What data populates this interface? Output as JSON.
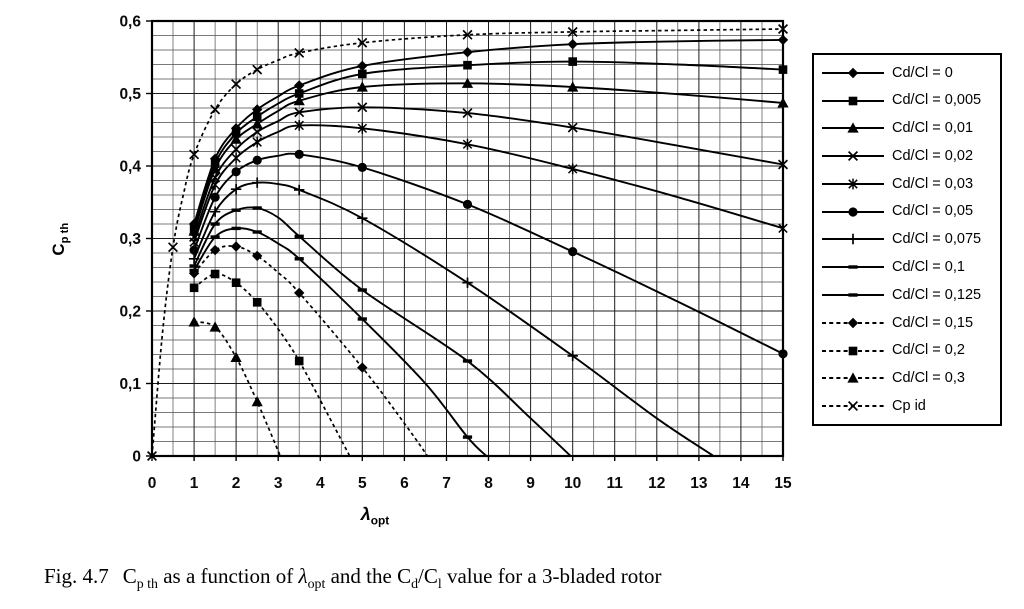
{
  "figure": {
    "caption_segments": [
      {
        "t": "Fig. 4.7",
        "gap": true
      },
      {
        "t": "C"
      },
      {
        "sub": "p th"
      },
      {
        "t": " as a function of "
      },
      {
        "t": "λ",
        "italic": true
      },
      {
        "sub": "opt"
      },
      {
        "t": " and the C"
      },
      {
        "sub": "d"
      },
      {
        "t": "/C"
      },
      {
        "sub": "l"
      },
      {
        "t": " value for a 3-bladed rotor"
      }
    ]
  },
  "chart_data": {
    "type": "line",
    "title": "",
    "xlabel": "λ_opt",
    "ylabel": "C_p th",
    "xlabel_segments": [
      {
        "t": "λ",
        "italic": true
      },
      {
        "sub": "opt"
      }
    ],
    "ylabel_segments": [
      {
        "t": "C"
      },
      {
        "sub": "p th"
      }
    ],
    "xlim": [
      0,
      15
    ],
    "ylim": [
      0,
      0.6
    ],
    "x_major": 1,
    "x_minor": 0.5,
    "y_major": 0.1,
    "y_minor": 0.02,
    "grid": true,
    "legend_position": "right",
    "x_ticks": [
      "0",
      "1",
      "2",
      "3",
      "4",
      "5",
      "6",
      "7",
      "8",
      "9",
      "10",
      "11",
      "12",
      "13",
      "14",
      "15"
    ],
    "y_ticks": [
      "0",
      "0,1",
      "0,2",
      "0,3",
      "0,4",
      "0,5",
      "0,6"
    ],
    "series": [
      {
        "name": "Cd/Cl = 0",
        "marker": "diamond",
        "line": "solid",
        "points": [
          [
            1,
            0.32
          ],
          [
            1.5,
            0.41
          ],
          [
            2,
            0.452
          ],
          [
            2.5,
            0.478
          ],
          [
            3,
            0.496
          ],
          [
            3.5,
            0.511
          ],
          [
            5,
            0.538
          ],
          [
            7.5,
            0.557
          ],
          [
            10,
            0.568
          ],
          [
            12.5,
            0.572
          ],
          [
            15,
            0.574
          ]
        ],
        "markers_at": [
          1,
          1.5,
          2,
          2.5,
          3.5,
          5,
          7.5,
          10,
          15
        ]
      },
      {
        "name": "Cd/Cl = 0,005",
        "marker": "square",
        "line": "solid",
        "points": [
          [
            1,
            0.315
          ],
          [
            1.5,
            0.403
          ],
          [
            2,
            0.445
          ],
          [
            2.5,
            0.468
          ],
          [
            3,
            0.486
          ],
          [
            3.5,
            0.5
          ],
          [
            5,
            0.527
          ],
          [
            7.5,
            0.539
          ],
          [
            10,
            0.544
          ],
          [
            12.5,
            0.54
          ],
          [
            15,
            0.533
          ]
        ],
        "markers_at": [
          1,
          1.5,
          2,
          2.5,
          3.5,
          5,
          7.5,
          10,
          15
        ]
      },
      {
        "name": "Cd/Cl = 0,01",
        "marker": "triangle",
        "line": "solid",
        "points": [
          [
            1,
            0.31
          ],
          [
            1.5,
            0.396
          ],
          [
            2,
            0.437
          ],
          [
            2.5,
            0.458
          ],
          [
            3,
            0.476
          ],
          [
            3.5,
            0.49
          ],
          [
            5,
            0.509
          ],
          [
            7.5,
            0.514
          ],
          [
            10,
            0.509
          ],
          [
            12.5,
            0.499
          ],
          [
            15,
            0.487
          ]
        ],
        "markers_at": [
          1,
          1.5,
          2,
          2.5,
          3.5,
          5,
          7.5,
          10,
          15
        ]
      },
      {
        "name": "Cd/Cl = 0,02",
        "marker": "x",
        "line": "solid",
        "points": [
          [
            1,
            0.302
          ],
          [
            1.5,
            0.384
          ],
          [
            2,
            0.423
          ],
          [
            2.5,
            0.447
          ],
          [
            3,
            0.462
          ],
          [
            3.5,
            0.474
          ],
          [
            5,
            0.481
          ],
          [
            7.5,
            0.473
          ],
          [
            10,
            0.453
          ],
          [
            12.5,
            0.428
          ],
          [
            15,
            0.402
          ]
        ],
        "markers_at": [
          1,
          1.5,
          2,
          2.5,
          3.5,
          5,
          7.5,
          10,
          15
        ]
      },
      {
        "name": "Cd/Cl = 0,03",
        "marker": "asterisk",
        "line": "solid",
        "points": [
          [
            1,
            0.295
          ],
          [
            1.5,
            0.374
          ],
          [
            2,
            0.411
          ],
          [
            2.5,
            0.433
          ],
          [
            3,
            0.447
          ],
          [
            3.5,
            0.456
          ],
          [
            5,
            0.452
          ],
          [
            7.5,
            0.43
          ],
          [
            10,
            0.396
          ],
          [
            12.5,
            0.357
          ],
          [
            15,
            0.314
          ]
        ],
        "markers_at": [
          1,
          1.5,
          2,
          2.5,
          3.5,
          5,
          7.5,
          10,
          15
        ]
      },
      {
        "name": "Cd/Cl = 0,05",
        "marker": "circle",
        "line": "solid",
        "points": [
          [
            1,
            0.284
          ],
          [
            1.5,
            0.357
          ],
          [
            2,
            0.392
          ],
          [
            2.5,
            0.408
          ],
          [
            3,
            0.414
          ],
          [
            3.5,
            0.416
          ],
          [
            5,
            0.398
          ],
          [
            7.5,
            0.347
          ],
          [
            10,
            0.282
          ],
          [
            12.5,
            0.213
          ],
          [
            15,
            0.141
          ]
        ],
        "markers_at": [
          1,
          1.5,
          2,
          2.5,
          3.5,
          5,
          7.5,
          10,
          15
        ]
      },
      {
        "name": "Cd/Cl = 0,075",
        "marker": "plus",
        "line": "solid",
        "points": [
          [
            1,
            0.272
          ],
          [
            1.5,
            0.337
          ],
          [
            2,
            0.368
          ],
          [
            2.5,
            0.377
          ],
          [
            3,
            0.375
          ],
          [
            3.5,
            0.367
          ],
          [
            5,
            0.328
          ],
          [
            7.5,
            0.239
          ],
          [
            10,
            0.138
          ],
          [
            12,
            0.052
          ],
          [
            13.35,
            0
          ]
        ],
        "markers_at": [
          1,
          1.5,
          2,
          2.5,
          3.5,
          5,
          7.5,
          10
        ]
      },
      {
        "name": "Cd/Cl = 0,1",
        "marker": "dash",
        "line": "solid",
        "points": [
          [
            1,
            0.262
          ],
          [
            1.5,
            0.32
          ],
          [
            2,
            0.339
          ],
          [
            2.5,
            0.342
          ],
          [
            3,
            0.329
          ],
          [
            3.5,
            0.303
          ],
          [
            5,
            0.229
          ],
          [
            7.5,
            0.131
          ],
          [
            9,
            0.052
          ],
          [
            9.95,
            0
          ]
        ],
        "markers_at": [
          1,
          1.5,
          2,
          2.5,
          3.5,
          5,
          7.5
        ]
      },
      {
        "name": "Cd/Cl = 0,125",
        "marker": "dash",
        "line": "solid",
        "points": [
          [
            1,
            0.256
          ],
          [
            1.5,
            0.302
          ],
          [
            2,
            0.314
          ],
          [
            2.5,
            0.309
          ],
          [
            3,
            0.293
          ],
          [
            3.5,
            0.272
          ],
          [
            5,
            0.189
          ],
          [
            6.5,
            0.1
          ],
          [
            7.5,
            0.026
          ],
          [
            7.95,
            0
          ]
        ],
        "markers_at": [
          1,
          1.5,
          2,
          2.5,
          3.5,
          5,
          7.5
        ]
      },
      {
        "name": "Cd/Cl = 0,15",
        "marker": "diamond",
        "line": "dashed",
        "points": [
          [
            1,
            0.252
          ],
          [
            1.5,
            0.284
          ],
          [
            2,
            0.289
          ],
          [
            2.5,
            0.276
          ],
          [
            3,
            0.253
          ],
          [
            3.5,
            0.225
          ],
          [
            5,
            0.122
          ],
          [
            6,
            0.045
          ],
          [
            6.55,
            0
          ]
        ],
        "markers_at": [
          1,
          1.5,
          2,
          2.5,
          3.5,
          5
        ]
      },
      {
        "name": "Cd/Cl = 0,2",
        "marker": "square",
        "line": "dashed",
        "points": [
          [
            1,
            0.232
          ],
          [
            1.5,
            0.251
          ],
          [
            2,
            0.239
          ],
          [
            2.5,
            0.212
          ],
          [
            3,
            0.175
          ],
          [
            3.5,
            0.131
          ],
          [
            4.2,
            0.055
          ],
          [
            4.7,
            0
          ]
        ],
        "markers_at": [
          1,
          1.5,
          2,
          2.5,
          3.5
        ]
      },
      {
        "name": "Cd/Cl = 0,3",
        "marker": "triangle",
        "line": "dashed",
        "points": [
          [
            1,
            0.185
          ],
          [
            1.5,
            0.178
          ],
          [
            2,
            0.136
          ],
          [
            2.5,
            0.075
          ],
          [
            3.05,
            0
          ]
        ],
        "markers_at": [
          1,
          1.5,
          2,
          2.5
        ]
      },
      {
        "name": "Cp id",
        "marker": "x",
        "line": "dashed",
        "points": [
          [
            0,
            0
          ],
          [
            0.25,
            0.17
          ],
          [
            0.5,
            0.288
          ],
          [
            0.75,
            0.362
          ],
          [
            1,
            0.416
          ],
          [
            1.5,
            0.478
          ],
          [
            2,
            0.513
          ],
          [
            2.5,
            0.533
          ],
          [
            3,
            0.546
          ],
          [
            3.5,
            0.556
          ],
          [
            5,
            0.57
          ],
          [
            7.5,
            0.581
          ],
          [
            10,
            0.585
          ],
          [
            12.5,
            0.587
          ],
          [
            15,
            0.589
          ]
        ],
        "markers_at": [
          0,
          0.5,
          1,
          1.5,
          2,
          2.5,
          3.5,
          5,
          7.5,
          10,
          15
        ]
      }
    ]
  }
}
